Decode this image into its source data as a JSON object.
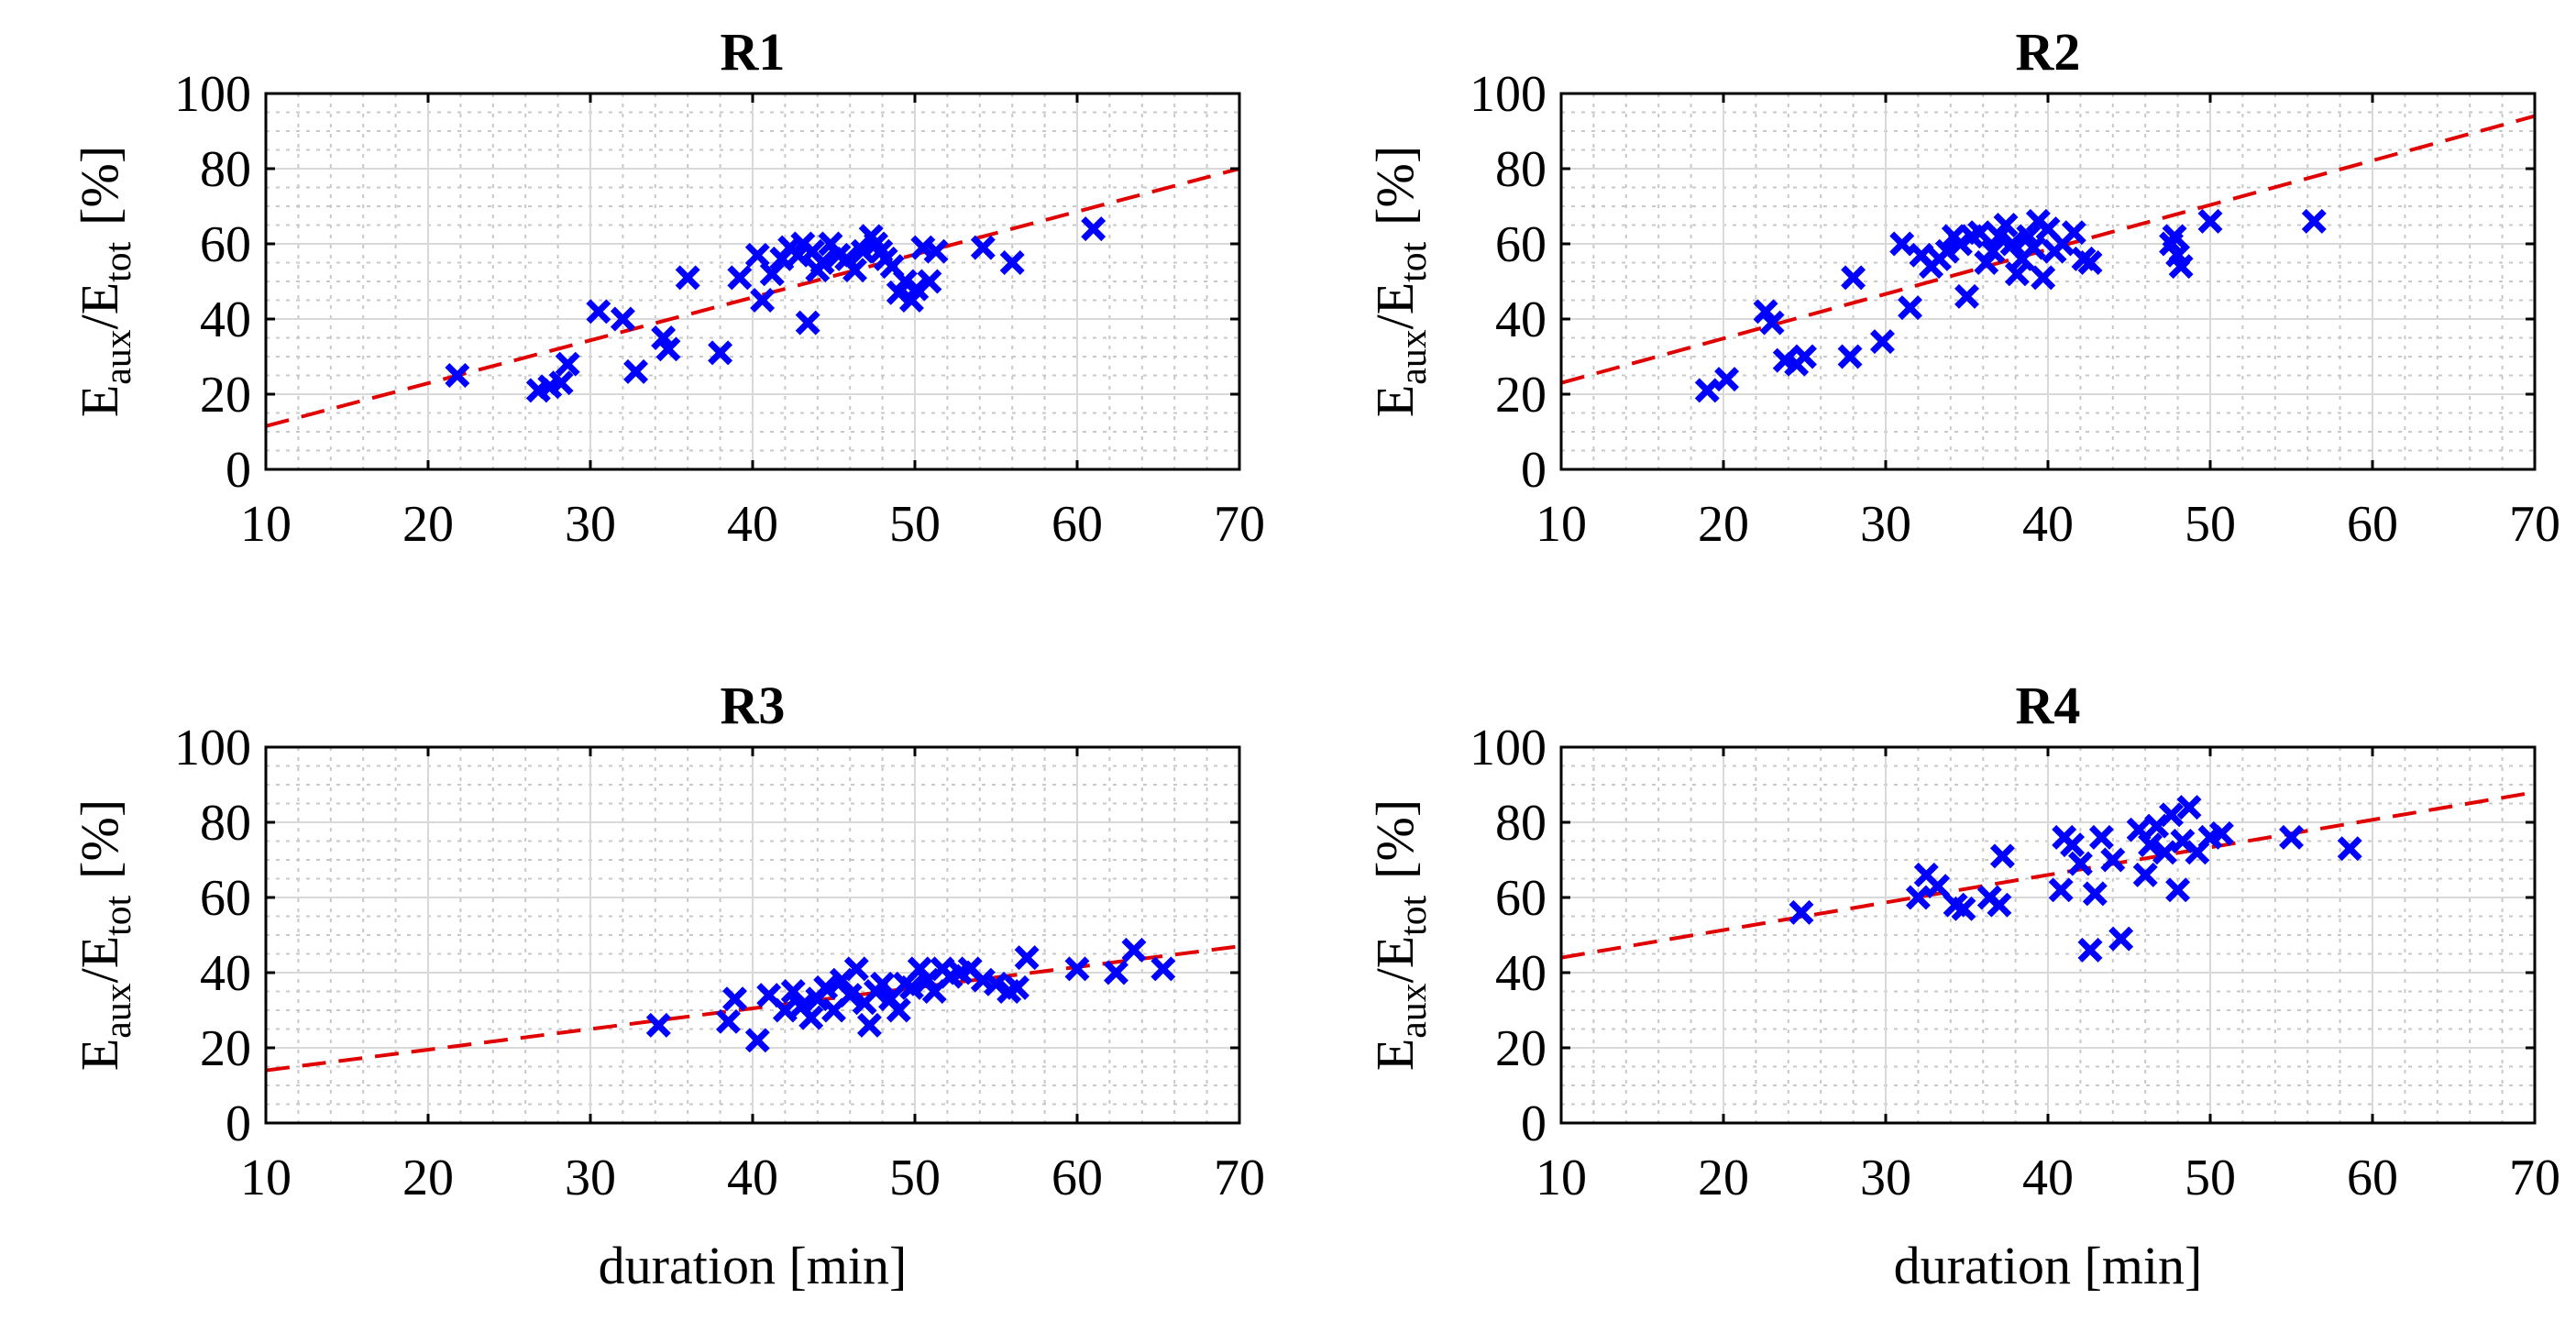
{
  "figure": {
    "xlabel": "duration [min]",
    "ylabel_main": "E",
    "ylabel_sub1": "aux",
    "ylabel_mid": "/E",
    "ylabel_sub2": "tot",
    "ylabel_unit": "[%]"
  },
  "chart_data": [
    {
      "type": "scatter",
      "title": "R1",
      "xlabel": "duration [min]",
      "ylabel": "E_aux/E_tot [%]",
      "xlim": [
        10,
        70
      ],
      "ylim": [
        0,
        100
      ],
      "xticks": [
        10,
        20,
        30,
        40,
        50,
        60,
        70
      ],
      "yticks": [
        0,
        20,
        40,
        60,
        80,
        100
      ],
      "grid": true,
      "marker_color": "#0000ff",
      "fit_color": "#e00000",
      "fit_line": {
        "x": [
          10,
          70
        ],
        "y": [
          11.5,
          80
        ]
      },
      "x": [
        21.8,
        26.8,
        27.5,
        28.2,
        28.6,
        30.5,
        32.0,
        32.8,
        34.5,
        34.8,
        36.0,
        38.0,
        39.2,
        40.3,
        40.6,
        41.2,
        41.8,
        42.3,
        42.8,
        43.1,
        43.4,
        43.7,
        44.0,
        44.3,
        44.8,
        45.3,
        45.8,
        46.3,
        46.8,
        47.3,
        47.6,
        47.9,
        48.2,
        48.6,
        49.0,
        49.4,
        49.8,
        50.1,
        50.5,
        50.9,
        51.3,
        54.2,
        56.0,
        61.0
      ],
      "y": [
        25,
        21,
        22,
        23,
        28,
        42,
        40,
        26,
        35,
        32,
        51,
        31,
        51,
        57,
        45,
        52,
        56,
        59,
        57,
        60,
        39,
        58,
        53,
        55,
        60,
        57,
        56,
        53,
        58,
        62,
        60,
        58,
        56,
        54,
        47,
        50,
        45,
        48,
        59,
        50,
        58,
        59,
        55,
        64
      ]
    },
    {
      "type": "scatter",
      "title": "R2",
      "xlabel": "duration [min]",
      "ylabel": "E_aux/E_tot [%]",
      "xlim": [
        10,
        70
      ],
      "ylim": [
        0,
        100
      ],
      "xticks": [
        10,
        20,
        30,
        40,
        50,
        60,
        70
      ],
      "yticks": [
        0,
        20,
        40,
        60,
        80,
        100
      ],
      "grid": true,
      "marker_color": "#0000ff",
      "fit_color": "#e00000",
      "fit_line": {
        "x": [
          10,
          70
        ],
        "y": [
          23,
          94
        ]
      },
      "x": [
        19.0,
        20.2,
        22.6,
        23.0,
        23.8,
        24.5,
        25.0,
        27.8,
        28.0,
        29.8,
        31.0,
        31.5,
        32.2,
        32.8,
        33.3,
        33.8,
        34.2,
        34.6,
        35.0,
        35.3,
        35.8,
        36.2,
        36.6,
        37.0,
        37.4,
        37.8,
        38.1,
        38.4,
        38.8,
        39.1,
        39.4,
        39.7,
        40.0,
        40.4,
        40.9,
        41.6,
        42.2,
        42.6,
        47.6,
        47.8,
        48.0,
        48.2,
        50.0,
        56.4
      ],
      "y": [
        21,
        24,
        42,
        39,
        29,
        28,
        30,
        30,
        51,
        34,
        60,
        43,
        57,
        54,
        56,
        58,
        62,
        60,
        46,
        62,
        63,
        55,
        58,
        62,
        65,
        60,
        52,
        56,
        62,
        59,
        66,
        51,
        64,
        58,
        60,
        63,
        56,
        55,
        60,
        62,
        57,
        54,
        66,
        66
      ]
    },
    {
      "type": "scatter",
      "title": "R3",
      "xlabel": "duration [min]",
      "ylabel": "E_aux/E_tot [%]",
      "xlim": [
        10,
        70
      ],
      "ylim": [
        0,
        100
      ],
      "xticks": [
        10,
        20,
        30,
        40,
        50,
        60,
        70
      ],
      "yticks": [
        0,
        20,
        40,
        60,
        80,
        100
      ],
      "grid": true,
      "marker_color": "#0000ff",
      "fit_color": "#e00000",
      "fit_line": {
        "x": [
          10,
          70
        ],
        "y": [
          14,
          47
        ]
      },
      "x": [
        34.2,
        38.5,
        38.9,
        40.3,
        41.0,
        42.0,
        42.5,
        43.0,
        43.6,
        44.0,
        44.5,
        45.0,
        45.5,
        46.0,
        46.4,
        46.9,
        47.2,
        47.6,
        48.0,
        48.5,
        49.0,
        49.4,
        49.8,
        50.3,
        50.8,
        51.2,
        51.7,
        52.2,
        52.8,
        53.4,
        54.2,
        55.0,
        55.8,
        56.3,
        56.9,
        60.0,
        62.4,
        63.5,
        65.3
      ],
      "y": [
        26,
        27,
        33,
        22,
        34,
        30,
        35,
        31,
        28,
        33,
        36,
        30,
        38,
        34,
        41,
        32,
        26,
        35,
        37,
        33,
        30,
        37,
        36,
        41,
        38,
        35,
        41,
        39,
        40,
        41,
        38,
        37,
        35,
        36,
        44,
        41,
        40,
        46,
        41
      ]
    },
    {
      "type": "scatter",
      "title": "R4",
      "xlabel": "duration [min]",
      "ylabel": "E_aux/E_tot [%]",
      "xlim": [
        10,
        70
      ],
      "ylim": [
        0,
        100
      ],
      "xticks": [
        10,
        20,
        30,
        40,
        50,
        60,
        70
      ],
      "yticks": [
        0,
        20,
        40,
        60,
        80,
        100
      ],
      "grid": true,
      "marker_color": "#0000ff",
      "fit_color": "#e00000",
      "fit_line": {
        "x": [
          10,
          70
        ],
        "y": [
          44,
          88
        ]
      },
      "x": [
        24.8,
        32.0,
        32.5,
        33.2,
        34.3,
        34.8,
        36.4,
        37.0,
        37.2,
        40.8,
        41.0,
        41.5,
        42.0,
        42.6,
        42.9,
        43.3,
        44.0,
        44.5,
        45.6,
        46.0,
        46.3,
        46.7,
        47.2,
        47.6,
        48.0,
        48.3,
        48.7,
        49.2,
        50.0,
        50.7,
        55.0,
        58.6
      ],
      "y": [
        56,
        60,
        66,
        63,
        58,
        57,
        60,
        58,
        71,
        62,
        76,
        74,
        69,
        46,
        61,
        76,
        70,
        49,
        78,
        66,
        74,
        79,
        72,
        82,
        62,
        75,
        84,
        72,
        76,
        77,
        76,
        73
      ]
    }
  ]
}
